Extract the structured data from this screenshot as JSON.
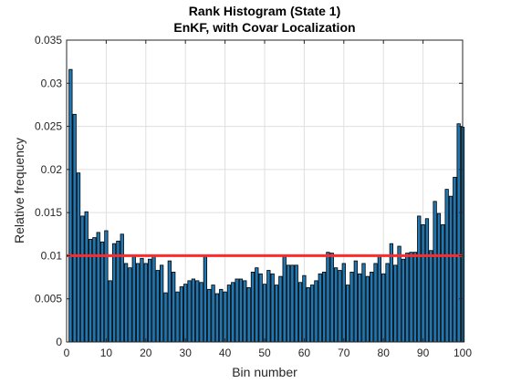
{
  "chart_data": {
    "type": "bar",
    "title": [
      "Rank Histogram (State 1)",
      "EnKF, with Covar Localization"
    ],
    "xlabel": "Bin number",
    "ylabel": "Relative frequency",
    "xlim": [
      0,
      100
    ],
    "ylim": [
      0,
      0.035
    ],
    "xticks": [
      0,
      10,
      20,
      30,
      40,
      50,
      60,
      70,
      80,
      90,
      100
    ],
    "yticks": [
      0,
      0.005,
      0.01,
      0.015,
      0.02,
      0.025,
      0.03,
      0.035
    ],
    "ytick_labels": [
      "0",
      "0.005",
      "0.01",
      "0.015",
      "0.02",
      "0.025",
      "0.03",
      "0.035"
    ],
    "grid": true,
    "bar_color": "#1f77b4",
    "bar_edge_color": "#000000",
    "reference_line": {
      "y": 0.01,
      "color": "#ff2a2a"
    },
    "x": [
      1,
      2,
      3,
      4,
      5,
      6,
      7,
      8,
      9,
      10,
      11,
      12,
      13,
      14,
      15,
      16,
      17,
      18,
      19,
      20,
      21,
      22,
      23,
      24,
      25,
      26,
      27,
      28,
      29,
      30,
      31,
      32,
      33,
      34,
      35,
      36,
      37,
      38,
      39,
      40,
      41,
      42,
      43,
      44,
      45,
      46,
      47,
      48,
      49,
      50,
      51,
      52,
      53,
      54,
      55,
      56,
      57,
      58,
      59,
      60,
      61,
      62,
      63,
      64,
      65,
      66,
      67,
      68,
      69,
      70,
      71,
      72,
      73,
      74,
      75,
      76,
      77,
      78,
      79,
      80,
      81,
      82,
      83,
      84,
      85,
      86,
      87,
      88,
      89,
      90,
      91,
      92,
      93,
      94,
      95,
      96,
      97,
      98,
      99,
      100
    ],
    "values": [
      0.0316,
      0.0264,
      0.0196,
      0.0146,
      0.0151,
      0.0119,
      0.0121,
      0.0127,
      0.0116,
      0.0129,
      0.0071,
      0.0114,
      0.0117,
      0.0125,
      0.0091,
      0.0086,
      0.0099,
      0.0091,
      0.0097,
      0.0091,
      0.0096,
      0.0101,
      0.0083,
      0.0089,
      0.0057,
      0.0094,
      0.0081,
      0.0058,
      0.0064,
      0.0067,
      0.0071,
      0.0073,
      0.0071,
      0.0069,
      0.0099,
      0.0061,
      0.0066,
      0.0056,
      0.0061,
      0.0058,
      0.0066,
      0.0069,
      0.0073,
      0.0073,
      0.0071,
      0.0063,
      0.0081,
      0.0086,
      0.0079,
      0.0067,
      0.0083,
      0.0079,
      0.0066,
      0.0076,
      0.0099,
      0.0089,
      0.0089,
      0.0089,
      0.0069,
      0.0077,
      0.0063,
      0.0066,
      0.0071,
      0.0079,
      0.0081,
      0.0104,
      0.0103,
      0.0086,
      0.0083,
      0.0091,
      0.0066,
      0.0081,
      0.0094,
      0.0079,
      0.0091,
      0.0076,
      0.0081,
      0.0091,
      0.0101,
      0.0079,
      0.0091,
      0.0114,
      0.0089,
      0.0111,
      0.0096,
      0.0103,
      0.0104,
      0.0104,
      0.0146,
      0.0136,
      0.0143,
      0.0106,
      0.0163,
      0.0149,
      0.0136,
      0.0177,
      0.0169,
      0.0191,
      0.0253,
      0.0249
    ]
  }
}
